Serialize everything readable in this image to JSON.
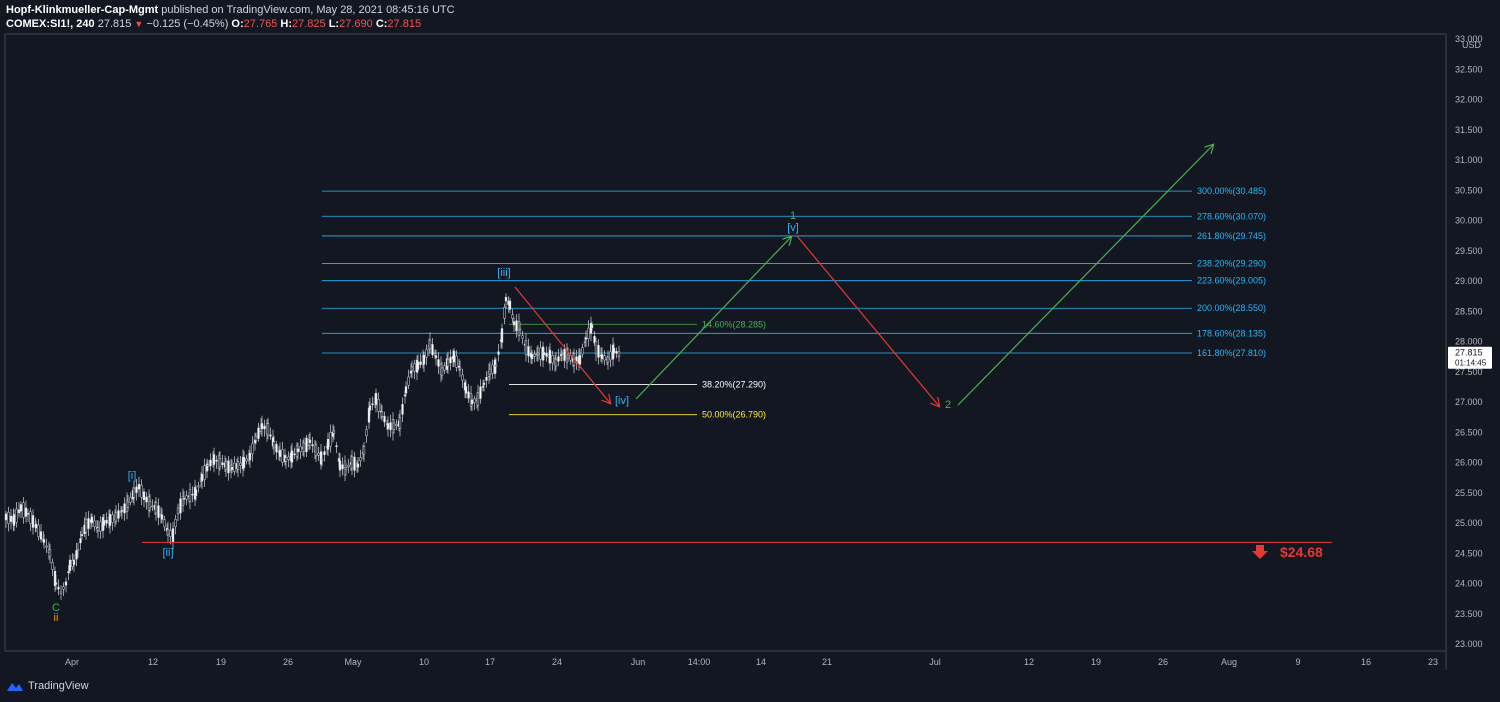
{
  "header": {
    "author": "Hopf-Klinkmueller-Cap-Mgmt",
    "published": "published on TradingView.com, May 28, 2021 08:45:16 UTC",
    "symbol": "COMEX:SI1!, 240",
    "last": "27.815",
    "change": "−0.125 (−0.45%)",
    "open_label": "O:",
    "open": "27.765",
    "high_label": "H:",
    "high": "27.825",
    "low_label": "L:",
    "low": "27.690",
    "close_label": "C:",
    "close": "27.815"
  },
  "footer": {
    "brand": "TradingView"
  },
  "chart_data": {
    "type": "candlestick",
    "currency": "USD",
    "ylim": [
      23.0,
      33.0
    ],
    "y_ticks": [
      "33.000",
      "32.500",
      "32.000",
      "31.500",
      "31.000",
      "30.500",
      "30.000",
      "29.500",
      "29.000",
      "28.500",
      "28.000",
      "27.500",
      "27.000",
      "26.500",
      "26.000",
      "25.500",
      "25.000",
      "24.500",
      "24.000",
      "23.500",
      "23.000"
    ],
    "x_ticks": [
      "Apr",
      "12",
      "19",
      "26",
      "May",
      "10",
      "17",
      "24",
      "Jun",
      "14:00",
      "14",
      "21",
      "Jul",
      "12",
      "19",
      "26",
      "Aug",
      "9",
      "16",
      "23"
    ],
    "last_price": "27.815",
    "countdown": "01:14:45",
    "price_path": [
      [
        0,
        25.1
      ],
      [
        8,
        25.05
      ],
      [
        15,
        25.25
      ],
      [
        22,
        25.15
      ],
      [
        30,
        24.95
      ],
      [
        38,
        24.7
      ],
      [
        44,
        24.5
      ],
      [
        50,
        24.0
      ],
      [
        55,
        23.85
      ],
      [
        60,
        24.0
      ],
      [
        64,
        24.3
      ],
      [
        68,
        24.35
      ],
      [
        72,
        24.55
      ],
      [
        76,
        24.8
      ],
      [
        80,
        24.95
      ],
      [
        86,
        25.05
      ],
      [
        92,
        24.9
      ],
      [
        98,
        25.0
      ],
      [
        104,
        25.05
      ],
      [
        110,
        25.1
      ],
      [
        116,
        25.2
      ],
      [
        122,
        25.3
      ],
      [
        128,
        25.5
      ],
      [
        133,
        25.6
      ],
      [
        138,
        25.45
      ],
      [
        144,
        25.3
      ],
      [
        150,
        25.25
      ],
      [
        156,
        25.1
      ],
      [
        162,
        24.85
      ],
      [
        167,
        24.8
      ],
      [
        172,
        25.2
      ],
      [
        178,
        25.4
      ],
      [
        184,
        25.45
      ],
      [
        190,
        25.5
      ],
      [
        196,
        25.75
      ],
      [
        202,
        25.95
      ],
      [
        208,
        26.05
      ],
      [
        214,
        26.0
      ],
      [
        220,
        25.95
      ],
      [
        226,
        25.9
      ],
      [
        232,
        25.95
      ],
      [
        238,
        26.0
      ],
      [
        244,
        26.1
      ],
      [
        250,
        26.4
      ],
      [
        256,
        26.6
      ],
      [
        262,
        26.55
      ],
      [
        268,
        26.3
      ],
      [
        274,
        26.15
      ],
      [
        280,
        26.05
      ],
      [
        286,
        26.1
      ],
      [
        292,
        26.2
      ],
      [
        298,
        26.25
      ],
      [
        304,
        26.35
      ],
      [
        310,
        26.2
      ],
      [
        316,
        26.05
      ],
      [
        322,
        26.3
      ],
      [
        328,
        26.5
      ],
      [
        334,
        25.95
      ],
      [
        340,
        25.9
      ],
      [
        346,
        26.0
      ],
      [
        352,
        25.95
      ],
      [
        358,
        26.2
      ],
      [
        364,
        26.9
      ],
      [
        370,
        27.05
      ],
      [
        376,
        26.8
      ],
      [
        382,
        26.6
      ],
      [
        388,
        26.6
      ],
      [
        394,
        26.65
      ],
      [
        400,
        27.2
      ],
      [
        406,
        27.55
      ],
      [
        412,
        27.6
      ],
      [
        418,
        27.7
      ],
      [
        424,
        27.95
      ],
      [
        430,
        27.75
      ],
      [
        436,
        27.5
      ],
      [
        442,
        27.65
      ],
      [
        448,
        27.75
      ],
      [
        454,
        27.55
      ],
      [
        460,
        27.2
      ],
      [
        466,
        27.0
      ],
      [
        472,
        27.05
      ],
      [
        478,
        27.3
      ],
      [
        484,
        27.5
      ],
      [
        490,
        27.6
      ],
      [
        496,
        28.1
      ],
      [
        500,
        28.7
      ],
      [
        504,
        28.6
      ],
      [
        508,
        28.3
      ],
      [
        514,
        28.2
      ],
      [
        520,
        27.9
      ],
      [
        526,
        27.75
      ],
      [
        532,
        27.8
      ],
      [
        538,
        27.8
      ],
      [
        544,
        27.75
      ],
      [
        550,
        27.65
      ],
      [
        556,
        27.8
      ],
      [
        562,
        27.75
      ],
      [
        568,
        27.7
      ],
      [
        574,
        27.7
      ],
      [
        580,
        28.05
      ],
      [
        586,
        28.25
      ],
      [
        590,
        27.9
      ],
      [
        596,
        27.75
      ],
      [
        602,
        27.7
      ],
      [
        608,
        27.85
      ],
      [
        614,
        27.78
      ]
    ],
    "fib_levels": [
      {
        "label": "300.00%(30.485)",
        "price": 30.485
      },
      {
        "label": "278.60%(30.070)",
        "price": 30.07
      },
      {
        "label": "261.80%(29.745)",
        "price": 29.745
      },
      {
        "label": "238.20%(29.290)",
        "price": 29.29
      },
      {
        "label": "223.60%(29.005)",
        "price": 29.005
      },
      {
        "label": "200.00%(28.550)",
        "price": 28.55
      },
      {
        "label": "178.60%(28.135)",
        "price": 28.135
      },
      {
        "label": "161.80%(27.810)",
        "price": 27.81
      }
    ],
    "retracements": [
      {
        "label": "14.60%(28.285)",
        "price": 28.285,
        "color": "#4caf50"
      },
      {
        "label": "38.20%(27.290)",
        "price": 27.29,
        "color": "#ffffff"
      },
      {
        "label": "50.00%(26.790)",
        "price": 26.79,
        "color": "#ffeb3b"
      }
    ],
    "support": {
      "label": "$24.68",
      "price": 24.68
    },
    "wave_labels": [
      {
        "text": "C",
        "color": "#4caf50"
      },
      {
        "text": "ii",
        "color": "#ff9800"
      },
      {
        "text": "[i]",
        "color": "#29b6f6"
      },
      {
        "text": "[ii]",
        "color": "#29b6f6"
      },
      {
        "text": "[iii]",
        "color": "#29b6f6"
      },
      {
        "text": "[iv]",
        "color": "#29b6f6"
      },
      {
        "text": "[v]",
        "color": "#29b6f6"
      },
      {
        "text": "1",
        "color": "#4caf50"
      },
      {
        "text": "2",
        "color": "#4caf50"
      }
    ],
    "colors": {
      "bg": "#131722",
      "fib": "#29b6f6",
      "up": "#4caf50",
      "down": "#e53935",
      "candle": "#d1d4dc"
    }
  }
}
